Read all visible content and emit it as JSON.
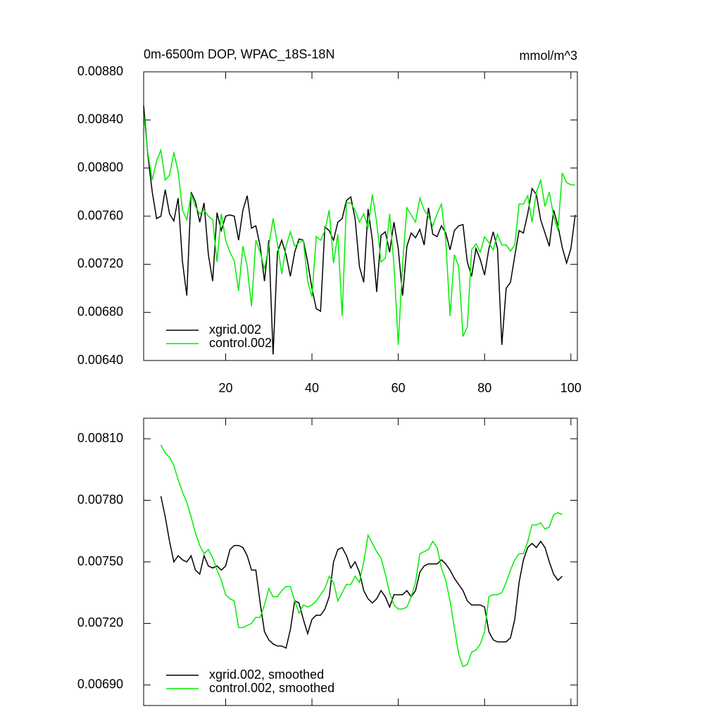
{
  "chart_data": [
    {
      "type": "line",
      "title": "0m-6500m DOP, WPAC_18S-18N",
      "subtitle": "mmol/m^3",
      "x": [
        1,
        2,
        3,
        4,
        5,
        6,
        7,
        8,
        9,
        10,
        11,
        12,
        13,
        14,
        15,
        16,
        17,
        18,
        19,
        20,
        21,
        22,
        23,
        24,
        25,
        26,
        27,
        28,
        29,
        30,
        31,
        32,
        33,
        34,
        35,
        36,
        37,
        38,
        39,
        40,
        41,
        42,
        43,
        44,
        45,
        46,
        47,
        48,
        49,
        50,
        51,
        52,
        53,
        54,
        55,
        56,
        57,
        58,
        59,
        60,
        61,
        62,
        63,
        64,
        65,
        66,
        67,
        68,
        69,
        70,
        71,
        72,
        73,
        74,
        75,
        76,
        77,
        78,
        79,
        80,
        81,
        82,
        83,
        84,
        85,
        86,
        87,
        88,
        89,
        90,
        91,
        92,
        93,
        94,
        95,
        96,
        97,
        98,
        99,
        100,
        101
      ],
      "series": [
        {
          "name": "xgrid.002",
          "color": "#000000",
          "values": [
            0.00852,
            0.0081,
            0.0078,
            0.00758,
            0.0076,
            0.00782,
            0.00762,
            0.00756,
            0.00775,
            0.00722,
            0.00694,
            0.0078,
            0.00772,
            0.00755,
            0.00771,
            0.00728,
            0.00706,
            0.00763,
            0.00748,
            0.0076,
            0.00761,
            0.0076,
            0.0074,
            0.00765,
            0.00777,
            0.0075,
            0.00752,
            0.00735,
            0.00706,
            0.0074,
            0.00645,
            0.0073,
            0.0074,
            0.00728,
            0.0071,
            0.0073,
            0.00741,
            0.0074,
            0.00722,
            0.007,
            0.00683,
            0.00681,
            0.00751,
            0.00748,
            0.0074,
            0.00755,
            0.00758,
            0.00773,
            0.00776,
            0.00758,
            0.00718,
            0.00705,
            0.00766,
            0.0074,
            0.00697,
            0.00744,
            0.00747,
            0.0073,
            0.00755,
            0.00733,
            0.00694,
            0.00735,
            0.00746,
            0.00742,
            0.00749,
            0.00736,
            0.00767,
            0.00745,
            0.00743,
            0.00752,
            0.00746,
            0.00732,
            0.00748,
            0.00752,
            0.00753,
            0.00722,
            0.0071,
            0.00733,
            0.00724,
            0.00711,
            0.00733,
            0.00747,
            0.00733,
            0.00653,
            0.007,
            0.00705,
            0.00727,
            0.00748,
            0.00746,
            0.00762,
            0.00783,
            0.00778,
            0.00757,
            0.00746,
            0.00735,
            0.00765,
            0.00752,
            0.00734,
            0.00721,
            0.00733,
            0.00761
          ]
        },
        {
          "name": "control.002",
          "color": "#00ee00",
          "values": [
            0.00845,
            0.00812,
            0.0079,
            0.00806,
            0.00815,
            0.0079,
            0.00794,
            0.00813,
            0.00797,
            0.00765,
            0.00757,
            0.00778,
            0.00768,
            0.00762,
            0.00765,
            0.0076,
            0.00757,
            0.00722,
            0.00762,
            0.0074,
            0.0073,
            0.00723,
            0.00698,
            0.00735,
            0.00718,
            0.00685,
            0.0074,
            0.0073,
            0.00716,
            0.00735,
            0.00758,
            0.00737,
            0.00712,
            0.00735,
            0.00747,
            0.00735,
            0.00738,
            0.0074,
            0.00706,
            0.00693,
            0.00743,
            0.0074,
            0.00748,
            0.00765,
            0.00721,
            0.00745,
            0.00677,
            0.00771,
            0.00771,
            0.00765,
            0.00755,
            0.00762,
            0.0075,
            0.00778,
            0.00755,
            0.00722,
            0.00725,
            0.00762,
            0.0072,
            0.00653,
            0.0072,
            0.00767,
            0.00761,
            0.00755,
            0.00775,
            0.00765,
            0.0076,
            0.00752,
            0.00762,
            0.0077,
            0.0074,
            0.00677,
            0.00728,
            0.00718,
            0.0066,
            0.00668,
            0.00732,
            0.00737,
            0.0073,
            0.00743,
            0.00738,
            0.00732,
            0.00745,
            0.00736,
            0.00736,
            0.00731,
            0.00736,
            0.0077,
            0.0077,
            0.00777,
            0.00755,
            0.0078,
            0.0079,
            0.00768,
            0.0078,
            0.0076,
            0.00748,
            0.00796,
            0.00788,
            0.00786,
            0.00786
          ]
        }
      ],
      "xlim": [
        1,
        101.5
      ],
      "xticks": [
        20,
        40,
        60,
        80,
        100
      ],
      "ylim": [
        0.0064,
        0.0088
      ],
      "yticks": [
        {
          "value": 0.0064,
          "label": "0.00640"
        },
        {
          "value": 0.0068,
          "label": "0.00680"
        },
        {
          "value": 0.0072,
          "label": "0.00720"
        },
        {
          "value": 0.0076,
          "label": "0.00760"
        },
        {
          "value": 0.008,
          "label": "0.00800"
        },
        {
          "value": 0.0084,
          "label": "0.00840"
        },
        {
          "value": 0.0088,
          "label": "0.00880"
        }
      ],
      "grid": false,
      "legend": "lower left"
    },
    {
      "type": "line",
      "x": [
        5,
        6,
        7,
        8,
        9,
        10,
        11,
        12,
        13,
        14,
        15,
        16,
        17,
        18,
        19,
        20,
        21,
        22,
        23,
        24,
        25,
        26,
        27,
        28,
        29,
        30,
        31,
        32,
        33,
        34,
        35,
        36,
        37,
        38,
        39,
        40,
        41,
        42,
        43,
        44,
        45,
        46,
        47,
        48,
        49,
        50,
        51,
        52,
        53,
        54,
        55,
        56,
        57,
        58,
        59,
        60,
        61,
        62,
        63,
        64,
        65,
        66,
        67,
        68,
        69,
        70,
        71,
        72,
        73,
        74,
        75,
        76,
        77,
        78,
        79,
        80,
        81,
        82,
        83,
        84,
        85,
        86,
        87,
        88,
        89,
        90,
        91,
        92,
        93,
        94,
        95,
        96,
        97,
        98
      ],
      "series": [
        {
          "name": "xgrid.002, smoothed",
          "color": "#000000",
          "values": [
            0.00782,
            0.00772,
            0.0076,
            0.0075,
            0.00753,
            0.00751,
            0.0075,
            0.00753,
            0.00746,
            0.00744,
            0.00753,
            0.00748,
            0.00747,
            0.00748,
            0.00746,
            0.00748,
            0.00756,
            0.00758,
            0.00758,
            0.00757,
            0.00753,
            0.00746,
            0.00746,
            0.0073,
            0.00716,
            0.00712,
            0.0071,
            0.00709,
            0.00709,
            0.00708,
            0.00717,
            0.00731,
            0.0073,
            0.00722,
            0.00715,
            0.00722,
            0.00724,
            0.00724,
            0.00727,
            0.00733,
            0.0075,
            0.00756,
            0.00757,
            0.00753,
            0.00747,
            0.0075,
            0.00745,
            0.00736,
            0.00732,
            0.0073,
            0.00732,
            0.00736,
            0.00733,
            0.00728,
            0.00734,
            0.00734,
            0.00734,
            0.00736,
            0.00733,
            0.00736,
            0.00745,
            0.00748,
            0.00749,
            0.00749,
            0.00749,
            0.00751,
            0.00749,
            0.00746,
            0.00742,
            0.00739,
            0.00736,
            0.00731,
            0.00729,
            0.00729,
            0.00729,
            0.00728,
            0.00716,
            0.00712,
            0.00711,
            0.00711,
            0.00711,
            0.00713,
            0.00722,
            0.0074,
            0.00751,
            0.00757,
            0.00759,
            0.00757,
            0.0076,
            0.00757,
            0.0075,
            0.00744,
            0.00741,
            0.00743
          ]
        },
        {
          "name": "control.002, smoothed",
          "color": "#00ee00",
          "values": [
            0.00807,
            0.00803,
            0.00801,
            0.00797,
            0.0079,
            0.00784,
            0.00779,
            0.00772,
            0.00764,
            0.00758,
            0.00754,
            0.00756,
            0.00752,
            0.00746,
            0.00741,
            0.00734,
            0.00732,
            0.00731,
            0.00718,
            0.00718,
            0.00719,
            0.0072,
            0.00723,
            0.00723,
            0.00729,
            0.00737,
            0.00733,
            0.00733,
            0.00736,
            0.00738,
            0.00738,
            0.00731,
            0.00725,
            0.00729,
            0.00728,
            0.00729,
            0.00731,
            0.00734,
            0.00737,
            0.00743,
            0.0074,
            0.00731,
            0.00735,
            0.00739,
            0.00739,
            0.00743,
            0.0074,
            0.0075,
            0.00763,
            0.00759,
            0.00755,
            0.00752,
            0.00744,
            0.00735,
            0.00729,
            0.00727,
            0.00727,
            0.00728,
            0.00733,
            0.0074,
            0.00754,
            0.00755,
            0.00756,
            0.0076,
            0.00757,
            0.00747,
            0.00741,
            0.00731,
            0.00718,
            0.00705,
            0.00699,
            0.007,
            0.00706,
            0.00707,
            0.0071,
            0.00716,
            0.00733,
            0.00734,
            0.00734,
            0.00735,
            0.0074,
            0.00746,
            0.00751,
            0.00754,
            0.00754,
            0.0076,
            0.00768,
            0.00768,
            0.00769,
            0.00766,
            0.00767,
            0.00773,
            0.00774,
            0.00773
          ]
        }
      ],
      "xlim": [
        1,
        101.5
      ],
      "ylim": [
        0.0068,
        0.0082
      ],
      "yticks": [
        {
          "value": 0.0069,
          "label": "0.00690"
        },
        {
          "value": 0.0072,
          "label": "0.00720"
        },
        {
          "value": 0.0075,
          "label": "0.00750"
        },
        {
          "value": 0.0078,
          "label": "0.00780"
        },
        {
          "value": 0.0081,
          "label": "0.00810"
        }
      ],
      "grid": false,
      "legend": "lower left"
    }
  ]
}
